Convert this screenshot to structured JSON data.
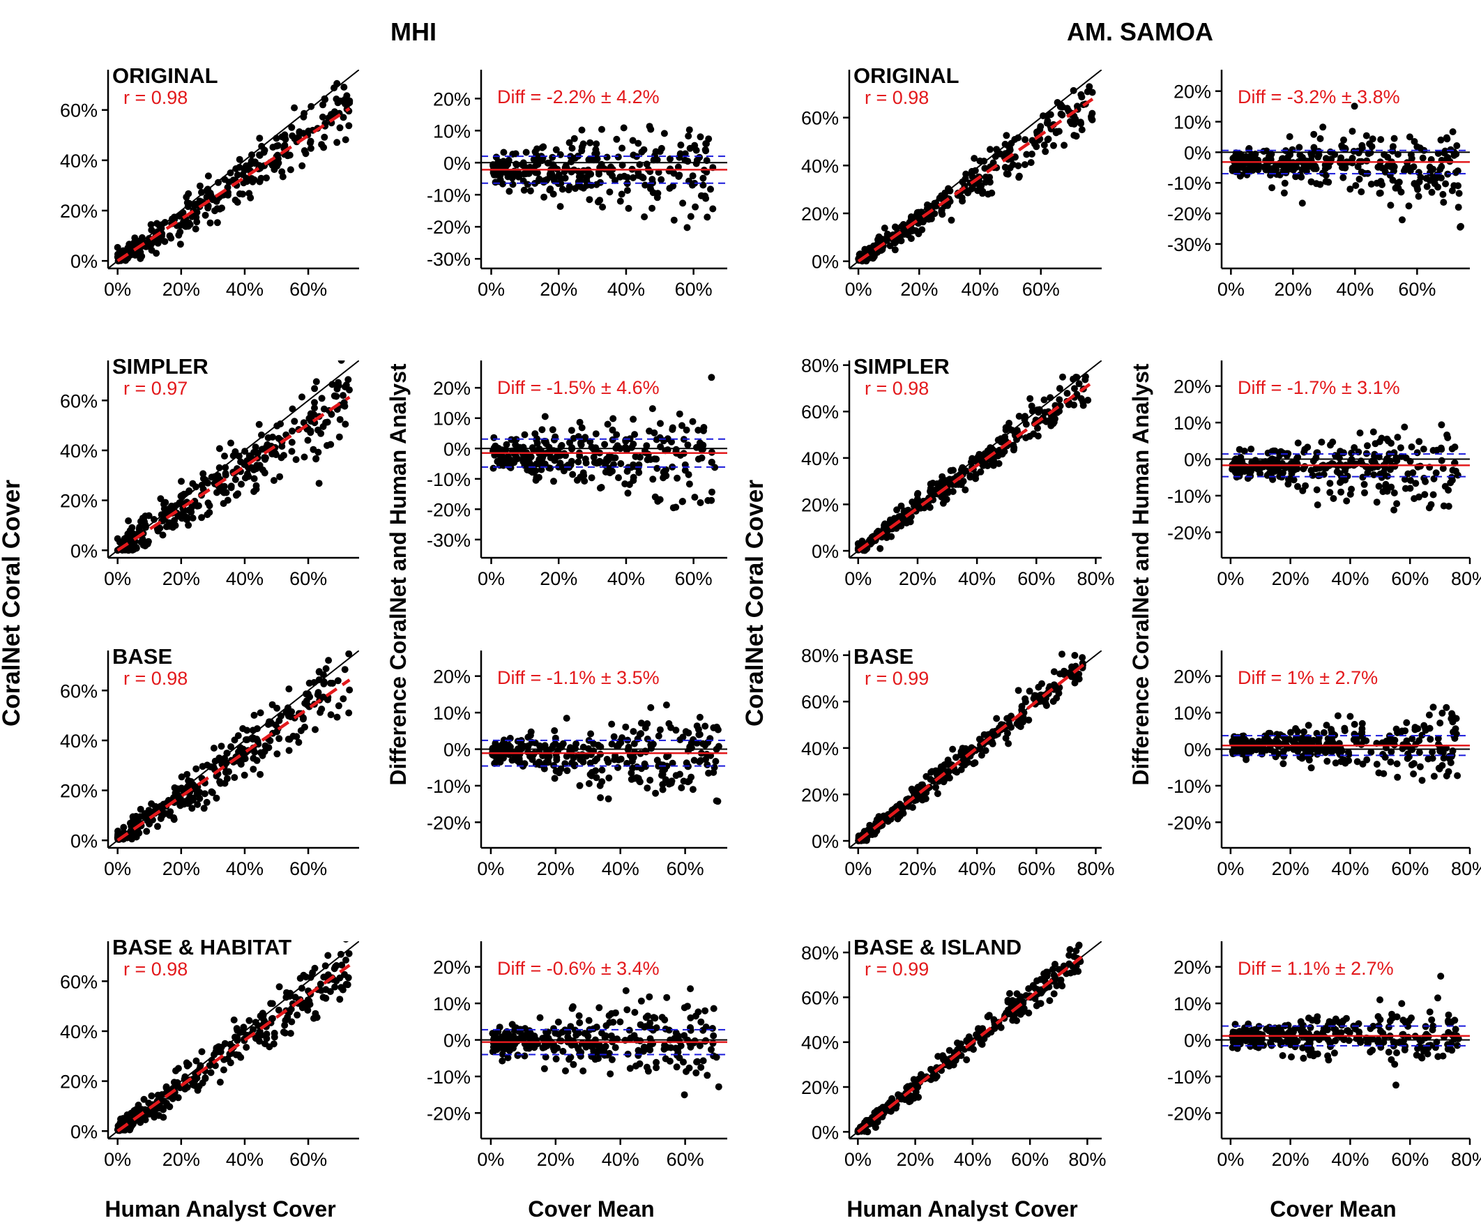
{
  "figure": {
    "region_titles": [
      "MHI",
      "AM. SAMOA"
    ],
    "y_label_scatter": "CoralNet Coral Cover",
    "y_label_diff": "Difference CoralNet and Human Analyst",
    "x_label_scatter": "Human Analyst Cover",
    "x_label_diff": "Cover Mean",
    "colors": {
      "points": "#000000",
      "fit_line": "#e3191c",
      "identity_line": "#000000",
      "mean_line": "#e3191c",
      "limit_lines": "#1a1adb",
      "annotation": "#e3191c"
    }
  },
  "chart_data": [
    {
      "type": "scatter",
      "region": "MHI",
      "model": "ORIGINAL",
      "title": "ORIGINAL",
      "stat": "r = 0.98",
      "slope": 0.83,
      "xlim": [
        -3,
        76
      ],
      "ylim": [
        -3,
        76
      ],
      "xticks": [
        0,
        20,
        40,
        60
      ],
      "yticks": [
        0,
        20,
        40,
        60
      ],
      "xmax_data": 73,
      "spread": 5,
      "seed": 11
    },
    {
      "type": "scatter",
      "region": "MHI",
      "model": "ORIGINAL",
      "title": "",
      "stat": "Diff = -2.2% ± 4.2%",
      "mean": -2.2,
      "sd": 4.2,
      "xlim": [
        -3,
        70
      ],
      "ylim": [
        -33,
        29
      ],
      "xticks": [
        0,
        20,
        40,
        60
      ],
      "yticks": [
        -30,
        -20,
        -10,
        0,
        10,
        20
      ],
      "xmax_data": 66,
      "seed": 12
    },
    {
      "type": "scatter",
      "region": "AM. SAMOA",
      "model": "ORIGINAL",
      "title": "ORIGINAL",
      "stat": "r = 0.98",
      "slope": 0.88,
      "xlim": [
        -3,
        80
      ],
      "ylim": [
        -3,
        80
      ],
      "xticks": [
        0,
        20,
        40,
        60
      ],
      "yticks": [
        0,
        20,
        40,
        60
      ],
      "xmax_data": 77,
      "spread": 4,
      "seed": 13
    },
    {
      "type": "scatter",
      "region": "AM. SAMOA",
      "model": "ORIGINAL",
      "title": "",
      "stat": "Diff = -3.2% ± 3.8%",
      "mean": -3.2,
      "sd": 3.8,
      "xlim": [
        -3,
        77
      ],
      "ylim": [
        -38,
        27
      ],
      "xticks": [
        0,
        20,
        40,
        60
      ],
      "yticks": [
        -30,
        -20,
        -10,
        0,
        10,
        20
      ],
      "xmax_data": 74,
      "seed": 14
    },
    {
      "type": "scatter",
      "region": "MHI",
      "model": "SIMPLER",
      "title": "SIMPLER",
      "stat": "r = 0.97",
      "slope": 0.84,
      "xlim": [
        -3,
        76
      ],
      "ylim": [
        -3,
        76
      ],
      "xticks": [
        0,
        20,
        40,
        60
      ],
      "yticks": [
        0,
        20,
        40,
        60
      ],
      "xmax_data": 73,
      "spread": 6,
      "seed": 21
    },
    {
      "type": "scatter",
      "region": "MHI",
      "model": "SIMPLER",
      "title": "",
      "stat": "Diff = -1.5% ± 4.6%",
      "mean": -1.5,
      "sd": 4.6,
      "xlim": [
        -3,
        70
      ],
      "ylim": [
        -36,
        29
      ],
      "xticks": [
        0,
        20,
        40,
        60
      ],
      "yticks": [
        -30,
        -20,
        -10,
        0,
        10,
        20
      ],
      "xmax_data": 66,
      "seed": 22
    },
    {
      "type": "scatter",
      "region": "AM. SAMOA",
      "model": "SIMPLER",
      "title": "SIMPLER",
      "stat": "r = 0.98",
      "slope": 0.92,
      "xlim": [
        -3,
        82
      ],
      "ylim": [
        -3,
        82
      ],
      "xticks": [
        0,
        20,
        40,
        60,
        80
      ],
      "yticks": [
        0,
        20,
        40,
        60,
        80
      ],
      "xmax_data": 78,
      "spread": 3.5,
      "seed": 23
    },
    {
      "type": "scatter",
      "region": "AM. SAMOA",
      "model": "SIMPLER",
      "title": "",
      "stat": "Diff = -1.7% ± 3.1%",
      "mean": -1.7,
      "sd": 3.1,
      "xlim": [
        -3,
        80
      ],
      "ylim": [
        -27,
        27
      ],
      "xticks": [
        0,
        20,
        40,
        60,
        80
      ],
      "yticks": [
        -20,
        -10,
        0,
        10,
        20
      ],
      "xmax_data": 76,
      "seed": 24
    },
    {
      "type": "scatter",
      "region": "MHI",
      "model": "BASE",
      "title": "BASE",
      "stat": "r = 0.98",
      "slope": 0.88,
      "xlim": [
        -3,
        76
      ],
      "ylim": [
        -3,
        76
      ],
      "xticks": [
        0,
        20,
        40,
        60
      ],
      "yticks": [
        0,
        20,
        40,
        60
      ],
      "xmax_data": 73,
      "spread": 4.5,
      "seed": 31
    },
    {
      "type": "scatter",
      "region": "MHI",
      "model": "BASE",
      "title": "",
      "stat": "Diff = -1.1% ± 3.5%",
      "mean": -1.1,
      "sd": 3.5,
      "xlim": [
        -3,
        73
      ],
      "ylim": [
        -27,
        27
      ],
      "xticks": [
        0,
        20,
        40,
        60
      ],
      "yticks": [
        -20,
        -10,
        0,
        10,
        20
      ],
      "xmax_data": 70,
      "seed": 32
    },
    {
      "type": "scatter",
      "region": "AM. SAMOA",
      "model": "BASE",
      "title": "BASE",
      "stat": "r = 0.99",
      "slope": 1.0,
      "xlim": [
        -3,
        82
      ],
      "ylim": [
        -3,
        82
      ],
      "xticks": [
        0,
        20,
        40,
        60,
        80
      ],
      "yticks": [
        0,
        20,
        40,
        60,
        80
      ],
      "xmax_data": 77,
      "spread": 3,
      "seed": 33
    },
    {
      "type": "scatter",
      "region": "AM. SAMOA",
      "model": "BASE",
      "title": "",
      "stat": "Diff = 1% ± 2.7%",
      "mean": 1.0,
      "sd": 2.7,
      "xlim": [
        -3,
        80
      ],
      "ylim": [
        -27,
        27
      ],
      "xticks": [
        0,
        20,
        40,
        60,
        80
      ],
      "yticks": [
        -20,
        -10,
        0,
        10,
        20
      ],
      "xmax_data": 76,
      "seed": 34
    },
    {
      "type": "scatter",
      "region": "MHI",
      "model": "BASE & HABITAT",
      "title": "BASE & HABITAT",
      "stat": "r = 0.98",
      "slope": 0.91,
      "xlim": [
        -3,
        76
      ],
      "ylim": [
        -3,
        76
      ],
      "xticks": [
        0,
        20,
        40,
        60
      ],
      "yticks": [
        0,
        20,
        40,
        60
      ],
      "xmax_data": 73,
      "spread": 4.5,
      "seed": 41
    },
    {
      "type": "scatter",
      "region": "MHI",
      "model": "BASE & HABITAT",
      "title": "",
      "stat": "Diff = -0.6% ± 3.4%",
      "mean": -0.6,
      "sd": 3.4,
      "xlim": [
        -3,
        73
      ],
      "ylim": [
        -27,
        27
      ],
      "xticks": [
        0,
        20,
        40,
        60
      ],
      "yticks": [
        -20,
        -10,
        0,
        10,
        20
      ],
      "xmax_data": 70,
      "seed": 42
    },
    {
      "type": "scatter",
      "region": "AM. SAMOA",
      "model": "BASE & ISLAND",
      "title": "BASE & ISLAND",
      "stat": "r = 0.99",
      "slope": 1.0,
      "xlim": [
        -3,
        85
      ],
      "ylim": [
        -3,
        85
      ],
      "xticks": [
        0,
        20,
        40,
        60,
        80
      ],
      "yticks": [
        0,
        20,
        40,
        60,
        80
      ],
      "xmax_data": 78,
      "spread": 3,
      "seed": 43
    },
    {
      "type": "scatter",
      "region": "AM. SAMOA",
      "model": "BASE & ISLAND",
      "title": "",
      "stat": "Diff = 1.1% ± 2.7%",
      "mean": 1.1,
      "sd": 2.7,
      "xlim": [
        -3,
        80
      ],
      "ylim": [
        -27,
        27
      ],
      "xticks": [
        0,
        20,
        40,
        60,
        80
      ],
      "yticks": [
        -20,
        -10,
        0,
        10,
        20
      ],
      "xmax_data": 76,
      "seed": 44
    }
  ]
}
